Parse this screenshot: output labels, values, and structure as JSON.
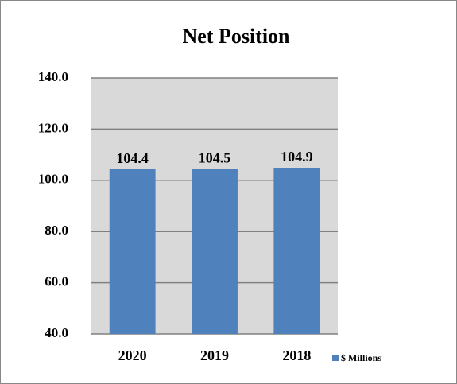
{
  "chart_data": {
    "type": "bar",
    "title": "Net Position",
    "categories": [
      "2020",
      "2019",
      "2018"
    ],
    "series": [
      {
        "name": "$ Millions",
        "color": "#4f81bd",
        "values": [
          104.4,
          104.5,
          104.9
        ]
      }
    ],
    "ylim": [
      40,
      140
    ],
    "yticks": [
      {
        "value": 40,
        "label": "40.0"
      },
      {
        "value": 60,
        "label": "60.0"
      },
      {
        "value": 80,
        "label": "80.0"
      },
      {
        "value": 100,
        "label": "100.0"
      },
      {
        "value": 120,
        "label": "120.0"
      },
      {
        "value": 140,
        "label": "140.0"
      }
    ],
    "grid": true,
    "legend": "right"
  }
}
